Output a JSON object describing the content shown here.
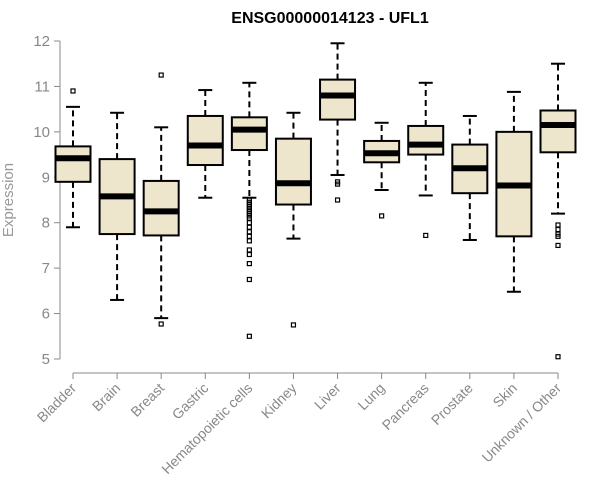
{
  "chart_data": {
    "type": "box",
    "title": "ENSG00000014123 - UFL1",
    "ylabel": "Expression",
    "xlabel": "",
    "ylim": [
      5,
      12
    ],
    "yticks": [
      5,
      6,
      7,
      8,
      9,
      10,
      11,
      12
    ],
    "box_fill": "#ede6cc",
    "categories": [
      "Bladder",
      "Brain",
      "Breast",
      "Gastric",
      "Hematopoietic cells",
      "Kidney",
      "Liver",
      "Lung",
      "Pancreas",
      "Prostate",
      "Skin",
      "Unknown / Other"
    ],
    "boxes": [
      {
        "whisker_low": 7.9,
        "q1": 8.9,
        "median": 9.42,
        "q3": 9.68,
        "whisker_high": 10.55,
        "outliers": [
          10.9
        ]
      },
      {
        "whisker_low": 6.3,
        "q1": 7.75,
        "median": 8.58,
        "q3": 9.4,
        "whisker_high": 10.42,
        "outliers": []
      },
      {
        "whisker_low": 5.9,
        "q1": 7.72,
        "median": 8.25,
        "q3": 8.92,
        "whisker_high": 10.1,
        "outliers": [
          11.25,
          5.77
        ]
      },
      {
        "whisker_low": 8.55,
        "q1": 9.27,
        "median": 9.7,
        "q3": 10.35,
        "whisker_high": 10.92,
        "outliers": []
      },
      {
        "whisker_low": 8.55,
        "q1": 9.6,
        "median": 10.05,
        "q3": 10.32,
        "whisker_high": 11.08,
        "outliers": [
          8.5,
          8.45,
          8.4,
          8.35,
          8.3,
          8.25,
          8.2,
          8.15,
          8.1,
          8.0,
          7.9,
          7.8,
          7.7,
          7.6,
          7.4,
          7.3,
          7.1,
          6.75,
          5.5
        ]
      },
      {
        "whisker_low": 7.65,
        "q1": 8.4,
        "median": 8.87,
        "q3": 9.85,
        "whisker_high": 10.42,
        "outliers": [
          5.75
        ]
      },
      {
        "whisker_low": 9.05,
        "q1": 10.27,
        "median": 10.8,
        "q3": 11.15,
        "whisker_high": 11.95,
        "outliers": [
          8.9,
          8.85,
          8.5
        ]
      },
      {
        "whisker_low": 8.72,
        "q1": 9.33,
        "median": 9.53,
        "q3": 9.8,
        "whisker_high": 10.2,
        "outliers": [
          8.15
        ]
      },
      {
        "whisker_low": 8.6,
        "q1": 9.5,
        "median": 9.72,
        "q3": 10.13,
        "whisker_high": 11.08,
        "outliers": [
          7.72
        ]
      },
      {
        "whisker_low": 7.62,
        "q1": 8.65,
        "median": 9.2,
        "q3": 9.72,
        "whisker_high": 10.35,
        "outliers": []
      },
      {
        "whisker_low": 6.48,
        "q1": 7.7,
        "median": 8.82,
        "q3": 10.0,
        "whisker_high": 10.88,
        "outliers": []
      },
      {
        "whisker_low": 8.2,
        "q1": 9.55,
        "median": 10.15,
        "q3": 10.47,
        "whisker_high": 11.5,
        "outliers": [
          7.95,
          7.85,
          7.75,
          7.7,
          7.5,
          5.05
        ]
      }
    ]
  }
}
